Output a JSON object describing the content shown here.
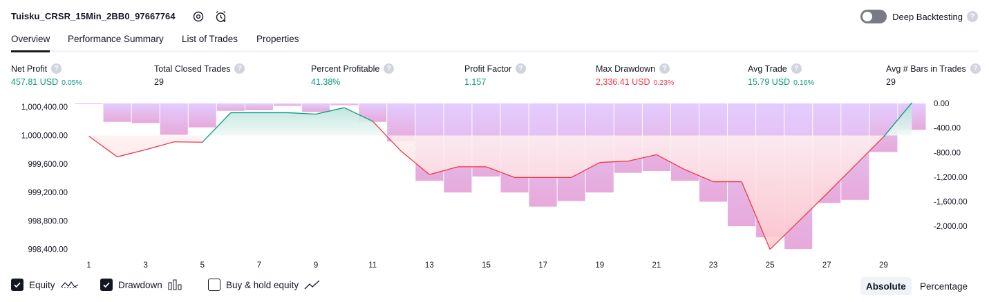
{
  "header": {
    "title": "Tuisku_CRSR_15Min_2BB0_97667764",
    "settings_icon": "gear-icon",
    "alert_icon": "alarm-plus-icon",
    "deep_backtesting_label": "Deep Backtesting",
    "deep_backtesting_on": false,
    "help": "?"
  },
  "tabs": [
    {
      "label": "Overview",
      "active": true
    },
    {
      "label": "Performance Summary",
      "active": false
    },
    {
      "label": "List of Trades",
      "active": false
    },
    {
      "label": "Properties",
      "active": false
    }
  ],
  "stats": [
    {
      "label": "Net Profit",
      "value": "457.81 USD",
      "pct": "0.05%",
      "tone": "green"
    },
    {
      "label": "Total Closed Trades",
      "value": "29",
      "pct": "",
      "tone": "dark"
    },
    {
      "label": "Percent Profitable",
      "value": "41.38%",
      "pct": "",
      "tone": "green"
    },
    {
      "label": "Profit Factor",
      "value": "1.157",
      "pct": "",
      "tone": "green"
    },
    {
      "label": "Max Drawdown",
      "value": "2,336.41 USD",
      "pct": "0.23%",
      "tone": "red"
    },
    {
      "label": "Avg Trade",
      "value": "15.79 USD",
      "pct": "0.16%",
      "tone": "green"
    },
    {
      "label": "Avg # Bars in Trades",
      "value": "29",
      "pct": "",
      "tone": "dark"
    }
  ],
  "chart_data": {
    "type": "line",
    "x_ticks": [
      "1",
      "3",
      "5",
      "7",
      "9",
      "11",
      "13",
      "15",
      "17",
      "19",
      "21",
      "23",
      "25",
      "27",
      "29"
    ],
    "left_axis_ticks": [
      "1,000,400.00",
      "1,000,000.00",
      "999,600.00",
      "999,200.00",
      "998,800.00",
      "998,400.00"
    ],
    "right_axis_ticks": [
      "0.00",
      "-400.00",
      "-800.00",
      "-1,200.00",
      "-1,600.00",
      "-2,000.00"
    ],
    "left_ylim": [
      998300,
      1000450
    ],
    "right_ylim": [
      -2380,
      0
    ],
    "baseline": 1000000,
    "x": [
      1,
      2,
      3,
      4,
      5,
      6,
      7,
      8,
      9,
      10,
      11,
      12,
      13,
      14,
      15,
      16,
      17,
      18,
      19,
      20,
      21,
      22,
      23,
      24,
      25,
      26,
      27,
      28,
      29,
      30
    ],
    "series": [
      {
        "name": "Equity",
        "values": [
          999990,
          999700,
          999800,
          999910,
          999905,
          1000320,
          1000320,
          1000320,
          1000300,
          1000390,
          1000200,
          999780,
          999450,
          999560,
          999560,
          999410,
          999410,
          999410,
          999620,
          999640,
          999730,
          999520,
          999350,
          999350,
          998400,
          998790,
          999180,
          999580,
          999980,
          1000460
        ],
        "color": "#089981",
        "negative_color": "#f23645"
      },
      {
        "name": "Drawdown",
        "values": [
          -10,
          -300,
          -320,
          -510,
          -390,
          -120,
          -110,
          -40,
          -140,
          -30,
          -300,
          -620,
          -1260,
          -1450,
          -1190,
          -1450,
          -1680,
          -1590,
          -1450,
          -1130,
          -1100,
          -1260,
          -1600,
          -2000,
          -2180,
          -2370,
          -1620,
          -1570,
          -790,
          -430
        ],
        "color": "#c27cfa"
      }
    ]
  },
  "footer": {
    "legend": [
      {
        "label": "Equity",
        "checked": true,
        "glyph": "equity-line-icon"
      },
      {
        "label": "Drawdown",
        "checked": true,
        "glyph": "drawdown-bars-icon"
      },
      {
        "label": "Buy & hold equity",
        "checked": false,
        "glyph": "buy-hold-line-icon"
      }
    ],
    "modes": [
      {
        "label": "Absolute",
        "active": true
      },
      {
        "label": "Percentage",
        "active": false
      }
    ]
  }
}
